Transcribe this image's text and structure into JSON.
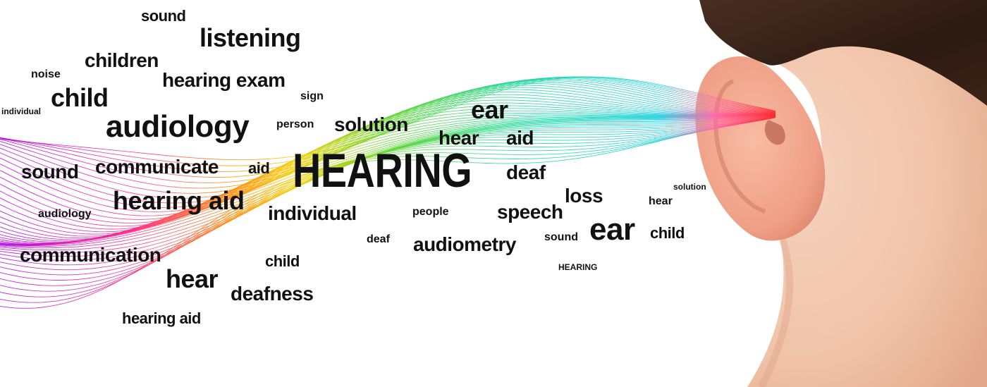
{
  "wave": {
    "colors": [
      "#b000e0",
      "#ff2d8a",
      "#ff8a00",
      "#f5d000",
      "#5ed62a",
      "#18d6a0",
      "#1fd0e0",
      "#ff2a2a"
    ]
  },
  "words": [
    {
      "text": "sound"
    },
    {
      "text": "listening"
    },
    {
      "text": "children"
    },
    {
      "text": "noise"
    },
    {
      "text": "hearing exam"
    },
    {
      "text": "child"
    },
    {
      "text": "sign"
    },
    {
      "text": "individual"
    },
    {
      "text": "audiology"
    },
    {
      "text": "person"
    },
    {
      "text": "solution"
    },
    {
      "text": "ear"
    },
    {
      "text": "hear"
    },
    {
      "text": "aid"
    },
    {
      "text": "sound"
    },
    {
      "text": "communicate"
    },
    {
      "text": "aid"
    },
    {
      "text": "HEARING"
    },
    {
      "text": "deaf"
    },
    {
      "text": "hearing aid"
    },
    {
      "text": "loss"
    },
    {
      "text": "solution"
    },
    {
      "text": "audiology"
    },
    {
      "text": "individual"
    },
    {
      "text": "hear"
    },
    {
      "text": "people"
    },
    {
      "text": "speech"
    },
    {
      "text": "ear"
    },
    {
      "text": "child"
    },
    {
      "text": "sound"
    },
    {
      "text": "deaf"
    },
    {
      "text": "audiometry"
    },
    {
      "text": "communication"
    },
    {
      "text": "child"
    },
    {
      "text": "HEARING"
    },
    {
      "text": "hear"
    },
    {
      "text": "deafness"
    },
    {
      "text": "hearing aid"
    }
  ]
}
